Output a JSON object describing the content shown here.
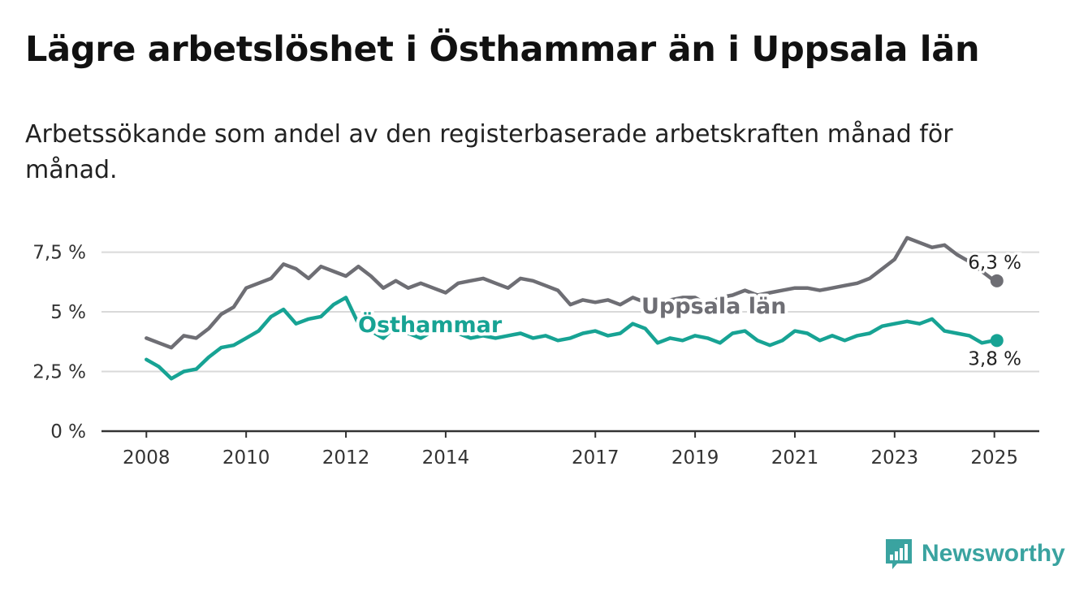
{
  "title": "Lägre arbetslöshet i Östhammar än i Uppsala län",
  "subtitle": "Arbetssökande som andel av den registerbaserade arbetskraften månad för månad.",
  "brand": {
    "name": "Newsworthy",
    "icon": "bar-chart-logo-icon",
    "color": "#3aa3a0"
  },
  "chart_data": {
    "type": "line",
    "x_ticks": [
      "2008",
      "2010",
      "2012",
      "2014",
      "2017",
      "2019",
      "2021",
      "2023",
      "2025"
    ],
    "y_ticks": [
      "0 %",
      "2,5 %",
      "5 %",
      "7,5 %"
    ],
    "ylim": [
      0,
      8.2
    ],
    "xlim": [
      2007.1,
      2025.9
    ],
    "grid": "horizontal",
    "series": [
      {
        "name": "Uppsala län",
        "color": "#6e6e74",
        "end_label": "6,3 %",
        "points": [
          [
            2008.0,
            3.9
          ],
          [
            2008.25,
            3.7
          ],
          [
            2008.5,
            3.5
          ],
          [
            2008.75,
            4.0
          ],
          [
            2009.0,
            3.9
          ],
          [
            2009.25,
            4.3
          ],
          [
            2009.5,
            4.9
          ],
          [
            2009.75,
            5.2
          ],
          [
            2010.0,
            6.0
          ],
          [
            2010.25,
            6.2
          ],
          [
            2010.5,
            6.4
          ],
          [
            2010.75,
            7.0
          ],
          [
            2011.0,
            6.8
          ],
          [
            2011.25,
            6.4
          ],
          [
            2011.5,
            6.9
          ],
          [
            2011.75,
            6.7
          ],
          [
            2012.0,
            6.5
          ],
          [
            2012.25,
            6.9
          ],
          [
            2012.5,
            6.5
          ],
          [
            2012.75,
            6.0
          ],
          [
            2013.0,
            6.3
          ],
          [
            2013.25,
            6.0
          ],
          [
            2013.5,
            6.2
          ],
          [
            2013.75,
            6.0
          ],
          [
            2014.0,
            5.8
          ],
          [
            2014.25,
            6.2
          ],
          [
            2014.5,
            6.3
          ],
          [
            2014.75,
            6.4
          ],
          [
            2015.0,
            6.2
          ],
          [
            2015.25,
            6.0
          ],
          [
            2015.5,
            6.4
          ],
          [
            2015.75,
            6.3
          ],
          [
            2016.0,
            6.1
          ],
          [
            2016.25,
            5.9
          ],
          [
            2016.5,
            5.3
          ],
          [
            2016.75,
            5.5
          ],
          [
            2017.0,
            5.4
          ],
          [
            2017.25,
            5.5
          ],
          [
            2017.5,
            5.3
          ],
          [
            2017.75,
            5.6
          ],
          [
            2018.0,
            5.4
          ],
          [
            2018.25,
            5.2
          ],
          [
            2018.5,
            5.5
          ],
          [
            2018.75,
            5.6
          ],
          [
            2019.0,
            5.6
          ],
          [
            2019.25,
            5.3
          ],
          [
            2019.5,
            5.6
          ],
          [
            2019.75,
            5.7
          ],
          [
            2020.0,
            5.9
          ],
          [
            2020.25,
            5.7
          ],
          [
            2020.5,
            5.8
          ],
          [
            2020.75,
            5.9
          ],
          [
            2021.0,
            6.0
          ],
          [
            2021.25,
            6.0
          ],
          [
            2021.5,
            5.9
          ],
          [
            2021.75,
            6.0
          ],
          [
            2022.0,
            6.1
          ],
          [
            2022.25,
            6.2
          ],
          [
            2022.5,
            6.4
          ],
          [
            2022.75,
            6.8
          ],
          [
            2023.0,
            7.2
          ],
          [
            2023.25,
            8.1
          ],
          [
            2023.5,
            7.9
          ],
          [
            2023.75,
            7.7
          ],
          [
            2024.0,
            7.8
          ],
          [
            2024.25,
            7.4
          ],
          [
            2024.5,
            7.1
          ],
          [
            2024.75,
            6.7
          ],
          [
            2025.0,
            6.3
          ],
          [
            2025.05,
            6.3
          ]
        ]
      },
      {
        "name": "Östhammar",
        "color": "#17a394",
        "end_label": "3,8 %",
        "points": [
          [
            2008.0,
            3.0
          ],
          [
            2008.25,
            2.7
          ],
          [
            2008.5,
            2.2
          ],
          [
            2008.75,
            2.5
          ],
          [
            2009.0,
            2.6
          ],
          [
            2009.25,
            3.1
          ],
          [
            2009.5,
            3.5
          ],
          [
            2009.75,
            3.6
          ],
          [
            2010.0,
            3.9
          ],
          [
            2010.25,
            4.2
          ],
          [
            2010.5,
            4.8
          ],
          [
            2010.75,
            5.1
          ],
          [
            2011.0,
            4.5
          ],
          [
            2011.25,
            4.7
          ],
          [
            2011.5,
            4.8
          ],
          [
            2011.75,
            5.3
          ],
          [
            2012.0,
            5.6
          ],
          [
            2012.25,
            4.5
          ],
          [
            2012.5,
            4.2
          ],
          [
            2012.75,
            3.9
          ],
          [
            2013.0,
            4.4
          ],
          [
            2013.25,
            4.1
          ],
          [
            2013.5,
            3.9
          ],
          [
            2013.75,
            4.2
          ],
          [
            2014.0,
            4.2
          ],
          [
            2014.25,
            4.1
          ],
          [
            2014.5,
            3.9
          ],
          [
            2014.75,
            4.0
          ],
          [
            2015.0,
            3.9
          ],
          [
            2015.25,
            4.0
          ],
          [
            2015.5,
            4.1
          ],
          [
            2015.75,
            3.9
          ],
          [
            2016.0,
            4.0
          ],
          [
            2016.25,
            3.8
          ],
          [
            2016.5,
            3.9
          ],
          [
            2016.75,
            4.1
          ],
          [
            2017.0,
            4.2
          ],
          [
            2017.25,
            4.0
          ],
          [
            2017.5,
            4.1
          ],
          [
            2017.75,
            4.5
          ],
          [
            2018.0,
            4.3
          ],
          [
            2018.25,
            3.7
          ],
          [
            2018.5,
            3.9
          ],
          [
            2018.75,
            3.8
          ],
          [
            2019.0,
            4.0
          ],
          [
            2019.25,
            3.9
          ],
          [
            2019.5,
            3.7
          ],
          [
            2019.75,
            4.1
          ],
          [
            2020.0,
            4.2
          ],
          [
            2020.25,
            3.8
          ],
          [
            2020.5,
            3.6
          ],
          [
            2020.75,
            3.8
          ],
          [
            2021.0,
            4.2
          ],
          [
            2021.25,
            4.1
          ],
          [
            2021.5,
            3.8
          ],
          [
            2021.75,
            4.0
          ],
          [
            2022.0,
            3.8
          ],
          [
            2022.25,
            4.0
          ],
          [
            2022.5,
            4.1
          ],
          [
            2022.75,
            4.4
          ],
          [
            2023.0,
            4.5
          ],
          [
            2023.25,
            4.6
          ],
          [
            2023.5,
            4.5
          ],
          [
            2023.75,
            4.7
          ],
          [
            2024.0,
            4.2
          ],
          [
            2024.25,
            4.1
          ],
          [
            2024.5,
            4.0
          ],
          [
            2024.75,
            3.7
          ],
          [
            2025.0,
            3.8
          ],
          [
            2025.05,
            3.8
          ]
        ]
      }
    ]
  }
}
